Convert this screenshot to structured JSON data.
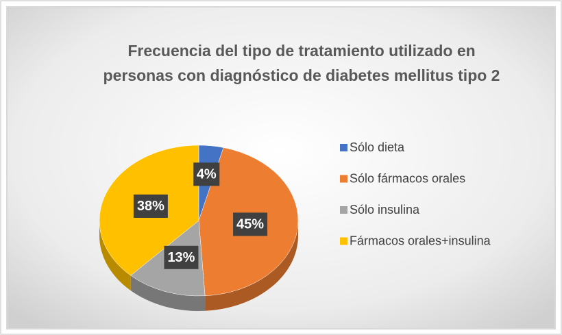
{
  "chart_data": {
    "type": "pie",
    "title": [
      "Frecuencia del tipo de tratamiento utilizado en",
      "personas con diagnóstico de diabetes mellitus tipo 2"
    ],
    "categories": [
      "Sólo dieta",
      "Sólo fármacos orales",
      "Sólo insulina",
      "Fármacos orales+insulina"
    ],
    "values": [
      4,
      45,
      13,
      38
    ],
    "value_labels": [
      "4%",
      "45%",
      "13%",
      "38%"
    ],
    "colors": [
      "#4472c4",
      "#ed7d31",
      "#a5a5a5",
      "#ffc000"
    ],
    "legend": "right"
  }
}
